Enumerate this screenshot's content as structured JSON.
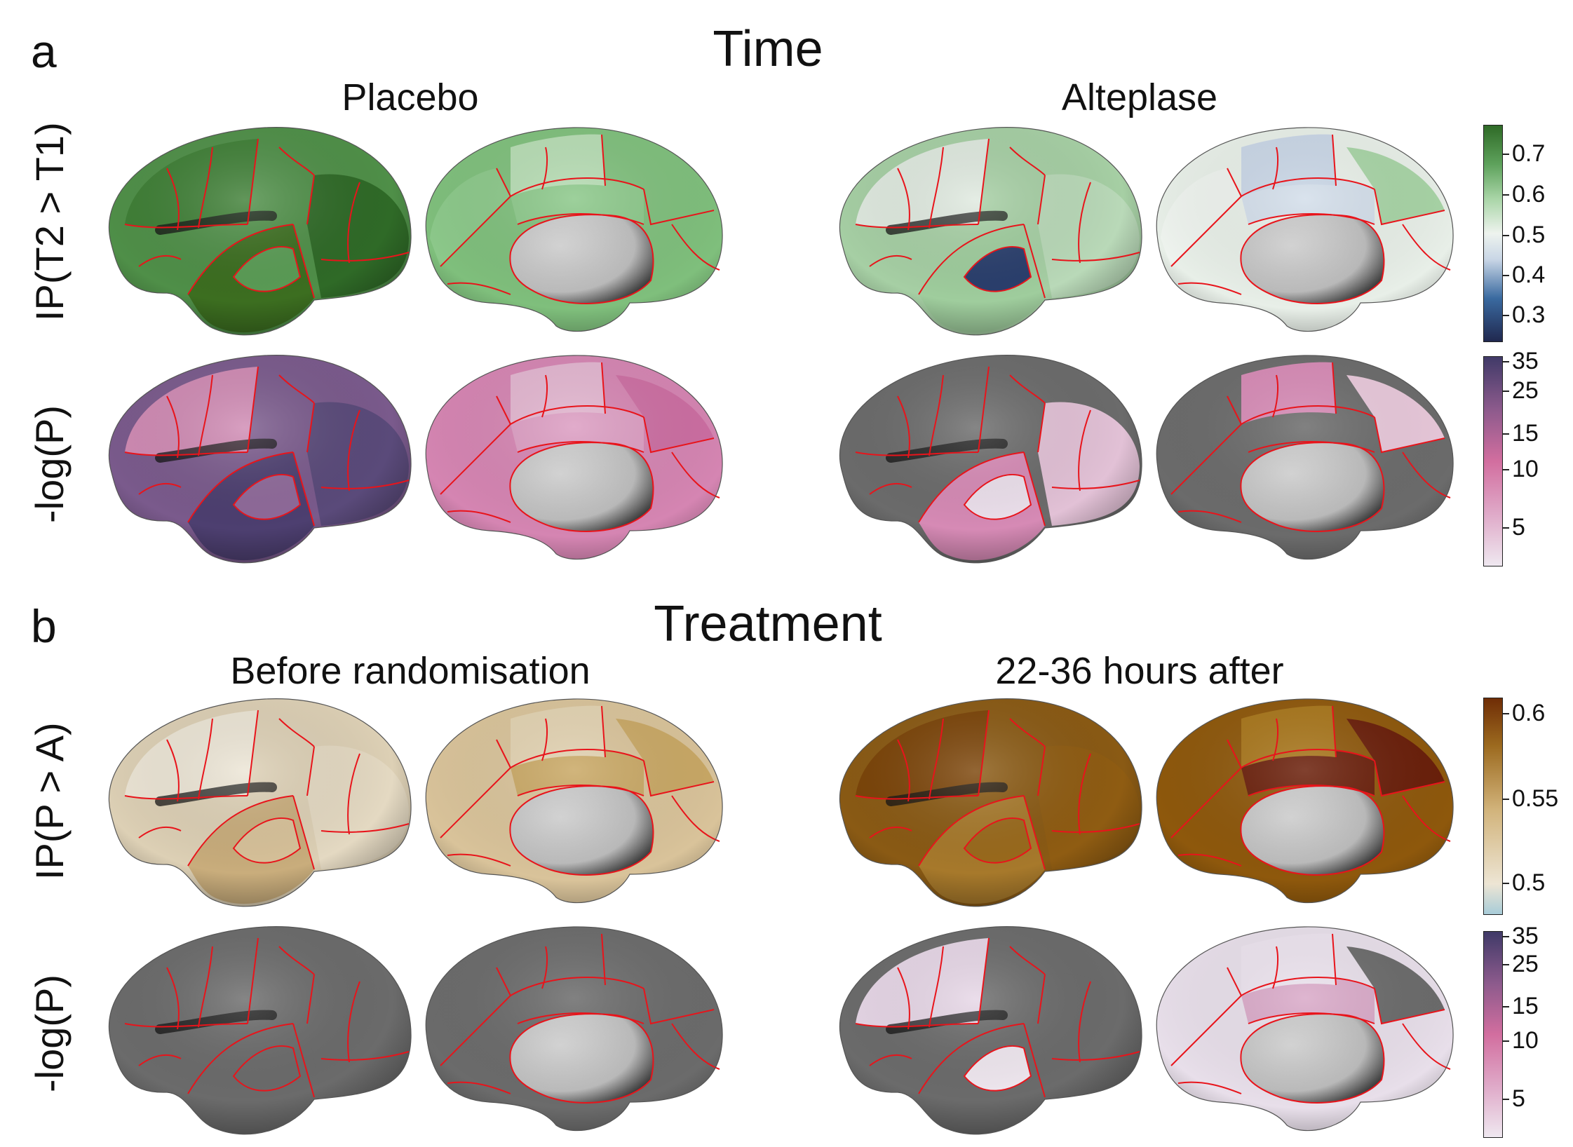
{
  "panels": [
    {
      "letter": "a",
      "title": "Time",
      "columns": [
        "Placebo",
        "Alteplase"
      ],
      "rows": [
        {
          "label": "IP(T2 > T1)",
          "colorbar_ticks": [
            "0.7",
            "0.6",
            "0.5",
            "0.4",
            "0.3"
          ]
        },
        {
          "label": "-log(P)",
          "colorbar_ticks": [
            "35",
            "25",
            "15",
            "10",
            "5"
          ]
        }
      ]
    },
    {
      "letter": "b",
      "title": "Treatment",
      "columns": [
        "Before randomisation",
        "22-36 hours after"
      ],
      "rows": [
        {
          "label": "IP(P > A)",
          "colorbar_ticks": [
            "0.6",
            "0.55",
            "0.5"
          ]
        },
        {
          "label": "-log(P)",
          "colorbar_ticks": [
            "35",
            "25",
            "15",
            "10",
            "5"
          ]
        }
      ]
    }
  ],
  "colors": {
    "parcel_border": "#e8141b",
    "green_scale": [
      "#20284f",
      "#3a6aa0",
      "#c9d6e6",
      "#eef3ee",
      "#a9d5a7",
      "#5ea25c",
      "#2f6a27"
    ],
    "pink_scale": [
      "#efe8f0",
      "#dfa9c8",
      "#d26e9f",
      "#8c5a8c",
      "#403a68"
    ],
    "brown_scale": [
      "#a8ccd8",
      "#ede5d4",
      "#d2b47c",
      "#9c6a1f",
      "#6f2d06"
    ],
    "nonsignificant_gray": "#6b6b6b",
    "medial_wall_gray": "#bdbdbd"
  }
}
